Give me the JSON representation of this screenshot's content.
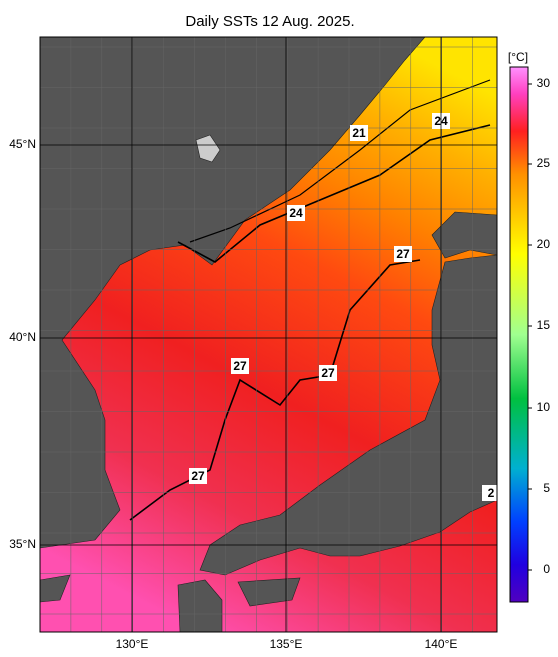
{
  "title": "Daily SSTs 12 Aug. 2025.",
  "map": {
    "lon_ticks": [
      "130°E",
      "135°E",
      "140°E"
    ],
    "lat_ticks": [
      "45°N",
      "40°N",
      "35°N"
    ],
    "contour_labels": [
      "21",
      "24",
      "24",
      "27",
      "27",
      "27",
      "27",
      "2"
    ]
  },
  "colorbar": {
    "unit": "[°C]",
    "ticks": [
      "30",
      "25",
      "20",
      "15",
      "10",
      "5",
      "0"
    ]
  }
}
